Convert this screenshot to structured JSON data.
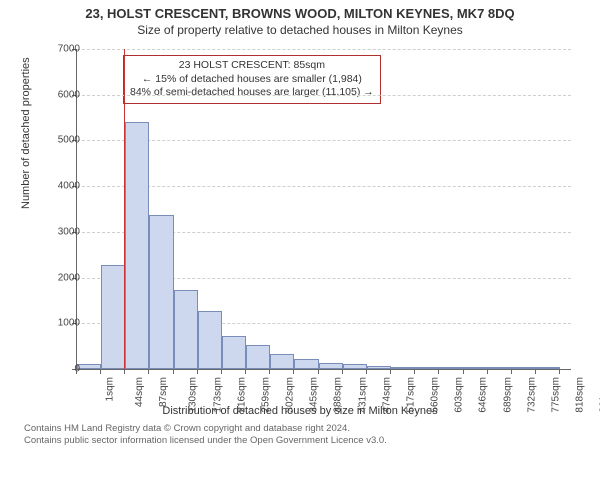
{
  "title": "23, HOLST CRESCENT, BROWNS WOOD, MILTON KEYNES, MK7 8DQ",
  "subtitle": "Size of property relative to detached houses in Milton Keynes",
  "chart": {
    "type": "histogram",
    "background_color": "#ffffff",
    "grid_color": "#cfcfcf",
    "axis_color": "#666666",
    "bar_fill": "#cdd7ee",
    "bar_stroke": "#7a8db8",
    "marker_line_color": "#c83232",
    "marker_x": 85,
    "ylabel": "Number of detached properties",
    "xlabel": "Distribution of detached houses by size in Milton Keynes",
    "label_fontsize": 11,
    "tick_fontsize": 10,
    "x_min": 1,
    "x_max": 880,
    "x_bin_width": 43,
    "xtick_step": 43,
    "xtick_unit": "sqm",
    "ylim": [
      0,
      7000
    ],
    "ytick_step": 1000,
    "values": [
      120,
      2280,
      5400,
      3380,
      1730,
      1280,
      720,
      520,
      330,
      230,
      130,
      110,
      60,
      40,
      25,
      15,
      10,
      8,
      5,
      2
    ],
    "annotation": {
      "line1": "23 HOLST CRESCENT: 85sqm",
      "line2": "← 15% of detached houses are smaller (1,984)",
      "line3": "84% of semi-detached houses are larger (11,105) →",
      "border_color": "#b03030",
      "fontsize": 10.5
    }
  },
  "footer": {
    "line1": "Contains HM Land Registry data © Crown copyright and database right 2024.",
    "line2": "Contains public sector information licensed under the Open Government Licence v3.0."
  }
}
